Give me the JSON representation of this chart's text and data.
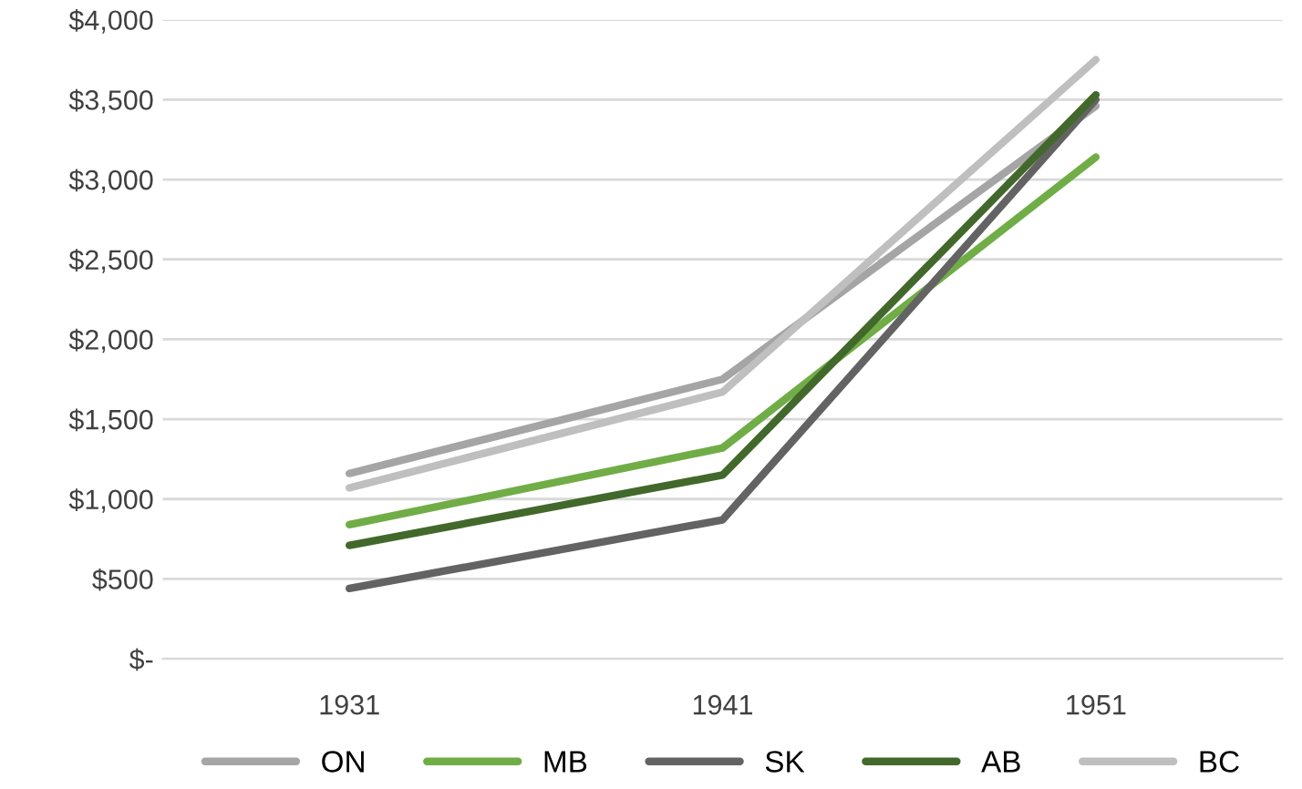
{
  "chart_data": {
    "type": "line",
    "categories": [
      "1931",
      "1941",
      "1951"
    ],
    "series": [
      {
        "name": "ON",
        "color": "#a5a5a5",
        "values": [
          1160,
          1750,
          3460
        ]
      },
      {
        "name": "MB",
        "color": "#70ad47",
        "values": [
          840,
          1320,
          3140
        ]
      },
      {
        "name": "SK",
        "color": "#636363",
        "values": [
          440,
          870,
          3500
        ]
      },
      {
        "name": "AB",
        "color": "#43682b",
        "values": [
          710,
          1150,
          3530
        ]
      },
      {
        "name": "BC",
        "color": "#bfbfbf",
        "values": [
          1070,
          1670,
          3750
        ]
      }
    ],
    "ylim": [
      0,
      4000
    ],
    "yticks": [
      {
        "value": 0,
        "label": "$-"
      },
      {
        "value": 500,
        "label": "$500"
      },
      {
        "value": 1000,
        "label": "$1,000"
      },
      {
        "value": 1500,
        "label": "$1,500"
      },
      {
        "value": 2000,
        "label": "$2,000"
      },
      {
        "value": 2500,
        "label": "$2,500"
      },
      {
        "value": 3000,
        "label": "$3,000"
      },
      {
        "value": 3500,
        "label": "$3,500"
      },
      {
        "value": 4000,
        "label": "$4,000"
      }
    ],
    "grid": "y",
    "legend": "bottom",
    "marker": "none",
    "line_style": "solid"
  }
}
